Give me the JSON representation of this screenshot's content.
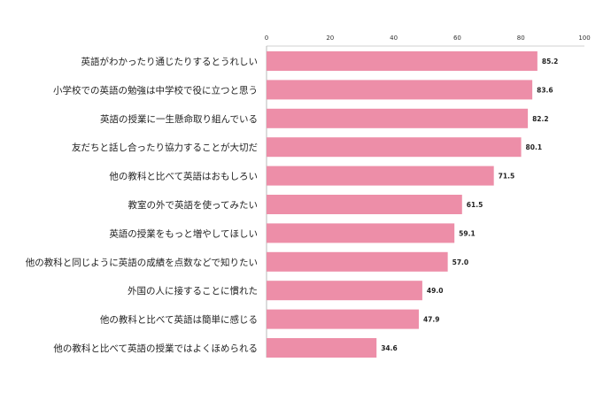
{
  "chart_data": {
    "type": "bar",
    "orientation": "horizontal",
    "title": "",
    "xlabel": "",
    "ylabel": "",
    "xlim": [
      0,
      100
    ],
    "ticks": [
      0,
      20,
      40,
      60,
      80,
      100
    ],
    "grid": false,
    "legend": "none",
    "bar_color": "#ed8ea8",
    "categories": [
      "英語がわかったり通じたりするとうれしい",
      "小学校での英語の勉強は中学校で役に立つと思う",
      "英語の授業に一生懸命取り組んでいる",
      "友だちと話し合ったり協力することが大切だ",
      "他の教科と比べて英語はおもしろい",
      "教室の外で英語を使ってみたい",
      "英語の授業をもっと増やしてほしい",
      "他の教科と同じように英語の成績を点数などで知りたい",
      "外国の人に接することに慣れた",
      "他の教科と比べて英語は簡単に感じる",
      "他の教科と比べて英語の授業ではよくほめられる"
    ],
    "values": [
      85.2,
      83.6,
      82.2,
      80.1,
      71.5,
      61.5,
      59.1,
      57.0,
      49.0,
      47.9,
      34.6
    ],
    "value_labels": [
      "85.2",
      "83.6",
      "82.2",
      "80.1",
      "71.5",
      "61.5",
      "59.1",
      "57.0",
      "49.0",
      "47.9",
      "34.6"
    ]
  }
}
